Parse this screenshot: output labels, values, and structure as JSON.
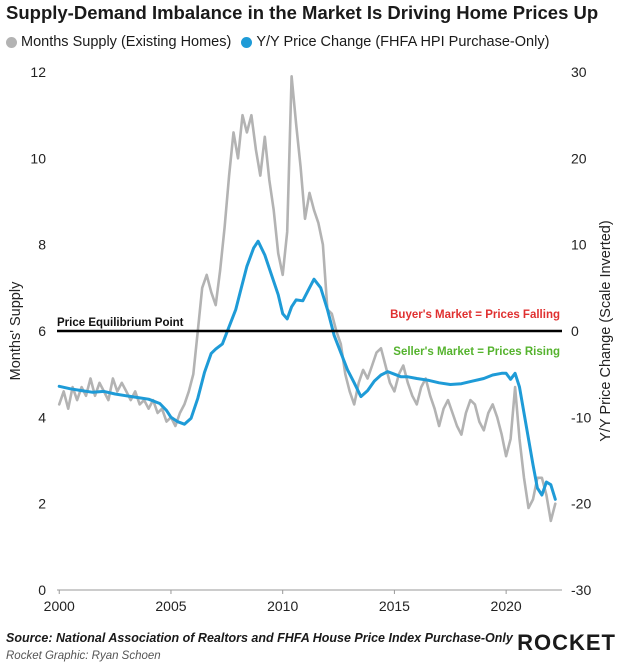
{
  "chart_data": {
    "type": "line",
    "title": "Supply-Demand Imbalance in the Market Is Driving Home Prices Up",
    "y_left_label": "Months' Supply",
    "y_right_label": "Y/Y Price Change (Scale Inverted)",
    "y_left_lim": [
      0,
      12
    ],
    "y_right_lim": [
      30,
      -30
    ],
    "y_right_inverted": true,
    "x_lim": [
      1999.9,
      2022.5
    ],
    "x_ticks": [
      "2000",
      "2005",
      "2010",
      "2015",
      "2020"
    ],
    "y_left_ticks": [
      "0",
      "2",
      "4",
      "6",
      "8",
      "10",
      "12"
    ],
    "y_right_ticks": [
      "30",
      "20",
      "10",
      "0",
      "-10",
      "-20",
      "-30"
    ],
    "grid": false,
    "legend_position": "top-left",
    "series": [
      {
        "name": "Months Supply (Existing Homes)",
        "axis": "left",
        "color": "#b3b3b3",
        "points": [
          [
            2000.0,
            4.3
          ],
          [
            2000.2,
            4.6
          ],
          [
            2000.4,
            4.2
          ],
          [
            2000.6,
            4.7
          ],
          [
            2000.8,
            4.4
          ],
          [
            2001.0,
            4.7
          ],
          [
            2001.2,
            4.5
          ],
          [
            2001.4,
            4.9
          ],
          [
            2001.6,
            4.5
          ],
          [
            2001.8,
            4.8
          ],
          [
            2002.0,
            4.6
          ],
          [
            2002.2,
            4.4
          ],
          [
            2002.4,
            4.9
          ],
          [
            2002.6,
            4.6
          ],
          [
            2002.8,
            4.8
          ],
          [
            2003.0,
            4.6
          ],
          [
            2003.2,
            4.4
          ],
          [
            2003.4,
            4.6
          ],
          [
            2003.6,
            4.3
          ],
          [
            2003.8,
            4.4
          ],
          [
            2004.0,
            4.2
          ],
          [
            2004.2,
            4.4
          ],
          [
            2004.4,
            4.1
          ],
          [
            2004.6,
            4.2
          ],
          [
            2004.8,
            3.9
          ],
          [
            2005.0,
            4.0
          ],
          [
            2005.2,
            3.8
          ],
          [
            2005.4,
            4.1
          ],
          [
            2005.6,
            4.3
          ],
          [
            2005.8,
            4.6
          ],
          [
            2006.0,
            5.0
          ],
          [
            2006.2,
            6.0
          ],
          [
            2006.4,
            7.0
          ],
          [
            2006.6,
            7.3
          ],
          [
            2006.8,
            6.9
          ],
          [
            2007.0,
            6.6
          ],
          [
            2007.2,
            7.4
          ],
          [
            2007.4,
            8.4
          ],
          [
            2007.6,
            9.6
          ],
          [
            2007.8,
            10.6
          ],
          [
            2008.0,
            10.0
          ],
          [
            2008.2,
            11.0
          ],
          [
            2008.4,
            10.6
          ],
          [
            2008.6,
            11.0
          ],
          [
            2008.8,
            10.2
          ],
          [
            2009.0,
            9.6
          ],
          [
            2009.2,
            10.5
          ],
          [
            2009.4,
            9.5
          ],
          [
            2009.6,
            8.8
          ],
          [
            2009.8,
            7.8
          ],
          [
            2010.0,
            7.3
          ],
          [
            2010.2,
            8.3
          ],
          [
            2010.4,
            11.9
          ],
          [
            2010.6,
            10.8
          ],
          [
            2010.8,
            9.8
          ],
          [
            2011.0,
            8.6
          ],
          [
            2011.2,
            9.2
          ],
          [
            2011.4,
            8.8
          ],
          [
            2011.6,
            8.5
          ],
          [
            2011.8,
            8.0
          ],
          [
            2012.0,
            6.5
          ],
          [
            2012.2,
            6.4
          ],
          [
            2012.4,
            6.0
          ],
          [
            2012.6,
            5.7
          ],
          [
            2012.8,
            5.0
          ],
          [
            2013.0,
            4.6
          ],
          [
            2013.2,
            4.3
          ],
          [
            2013.4,
            4.8
          ],
          [
            2013.6,
            5.1
          ],
          [
            2013.8,
            4.9
          ],
          [
            2014.0,
            5.2
          ],
          [
            2014.2,
            5.5
          ],
          [
            2014.4,
            5.6
          ],
          [
            2014.6,
            5.2
          ],
          [
            2014.8,
            4.8
          ],
          [
            2015.0,
            4.6
          ],
          [
            2015.2,
            5.0
          ],
          [
            2015.4,
            5.2
          ],
          [
            2015.6,
            4.8
          ],
          [
            2015.8,
            4.5
          ],
          [
            2016.0,
            4.3
          ],
          [
            2016.2,
            4.7
          ],
          [
            2016.4,
            4.9
          ],
          [
            2016.6,
            4.5
          ],
          [
            2016.8,
            4.2
          ],
          [
            2017.0,
            3.8
          ],
          [
            2017.2,
            4.2
          ],
          [
            2017.4,
            4.4
          ],
          [
            2017.6,
            4.1
          ],
          [
            2017.8,
            3.8
          ],
          [
            2018.0,
            3.6
          ],
          [
            2018.2,
            4.1
          ],
          [
            2018.4,
            4.4
          ],
          [
            2018.6,
            4.3
          ],
          [
            2018.8,
            3.9
          ],
          [
            2019.0,
            3.7
          ],
          [
            2019.2,
            4.1
          ],
          [
            2019.4,
            4.3
          ],
          [
            2019.6,
            4.0
          ],
          [
            2019.8,
            3.6
          ],
          [
            2020.0,
            3.1
          ],
          [
            2020.2,
            3.5
          ],
          [
            2020.4,
            4.7
          ],
          [
            2020.6,
            3.5
          ],
          [
            2020.8,
            2.6
          ],
          [
            2021.0,
            1.9
          ],
          [
            2021.2,
            2.1
          ],
          [
            2021.4,
            2.6
          ],
          [
            2021.6,
            2.6
          ],
          [
            2021.8,
            2.2
          ],
          [
            2022.0,
            1.6
          ],
          [
            2022.2,
            2.0
          ]
        ]
      },
      {
        "name": "Y/Y Price Change (FHFA HPI Purchase-Only)",
        "axis": "right",
        "color": "#1e9bd7",
        "points": [
          [
            2000.0,
            -6.4
          ],
          [
            2000.5,
            -6.7
          ],
          [
            2001.0,
            -6.9
          ],
          [
            2001.5,
            -7.1
          ],
          [
            2002.0,
            -7.0
          ],
          [
            2002.5,
            -7.3
          ],
          [
            2003.0,
            -7.5
          ],
          [
            2003.5,
            -7.7
          ],
          [
            2004.0,
            -7.9
          ],
          [
            2004.5,
            -8.4
          ],
          [
            2004.8,
            -9.2
          ],
          [
            2005.0,
            -10.0
          ],
          [
            2005.3,
            -10.5
          ],
          [
            2005.6,
            -10.8
          ],
          [
            2005.9,
            -10.1
          ],
          [
            2006.2,
            -7.8
          ],
          [
            2006.5,
            -4.8
          ],
          [
            2006.8,
            -2.6
          ],
          [
            2007.0,
            -2.1
          ],
          [
            2007.3,
            -1.5
          ],
          [
            2007.6,
            0.5
          ],
          [
            2007.9,
            2.5
          ],
          [
            2008.1,
            4.5
          ],
          [
            2008.4,
            7.5
          ],
          [
            2008.7,
            9.6
          ],
          [
            2008.9,
            10.4
          ],
          [
            2009.2,
            8.8
          ],
          [
            2009.5,
            6.5
          ],
          [
            2009.8,
            4.2
          ],
          [
            2010.0,
            2.0
          ],
          [
            2010.2,
            1.4
          ],
          [
            2010.4,
            2.8
          ],
          [
            2010.6,
            3.6
          ],
          [
            2010.9,
            3.5
          ],
          [
            2011.2,
            5.0
          ],
          [
            2011.4,
            6.0
          ],
          [
            2011.7,
            5.0
          ],
          [
            2012.0,
            2.5
          ],
          [
            2012.3,
            -0.5
          ],
          [
            2012.6,
            -2.5
          ],
          [
            2012.9,
            -4.5
          ],
          [
            2013.2,
            -6.0
          ],
          [
            2013.5,
            -7.6
          ],
          [
            2013.8,
            -6.9
          ],
          [
            2014.1,
            -5.8
          ],
          [
            2014.4,
            -5.1
          ],
          [
            2014.7,
            -4.7
          ],
          [
            2015.0,
            -5.0
          ],
          [
            2015.3,
            -5.3
          ],
          [
            2015.6,
            -5.3
          ],
          [
            2016.0,
            -5.5
          ],
          [
            2016.5,
            -5.7
          ],
          [
            2017.0,
            -6.0
          ],
          [
            2017.5,
            -6.2
          ],
          [
            2018.0,
            -6.1
          ],
          [
            2018.5,
            -5.8
          ],
          [
            2019.0,
            -5.5
          ],
          [
            2019.4,
            -5.1
          ],
          [
            2019.8,
            -4.9
          ],
          [
            2020.0,
            -4.9
          ],
          [
            2020.2,
            -5.6
          ],
          [
            2020.4,
            -4.9
          ],
          [
            2020.6,
            -6.5
          ],
          [
            2020.8,
            -9.5
          ],
          [
            2021.0,
            -12.5
          ],
          [
            2021.2,
            -15.5
          ],
          [
            2021.4,
            -18.2
          ],
          [
            2021.6,
            -19.0
          ],
          [
            2021.8,
            -17.5
          ],
          [
            2022.0,
            -17.8
          ],
          [
            2022.2,
            -19.5
          ]
        ]
      }
    ],
    "reference_line": {
      "axis": "left",
      "value": 6,
      "color": "#000000",
      "label": "Price Equilibrium Point"
    },
    "annotations": [
      {
        "text": "Buyer's Market = Prices Falling",
        "color": "#e03030"
      },
      {
        "text": "Seller's Market = Prices Rising",
        "color": "#55b32e"
      }
    ]
  },
  "footer": {
    "source": "Source: National Association of Realtors and FHFA House Price Index Purchase-Only",
    "credit": "Rocket Graphic: Ryan Schoen",
    "logo": "ROCKET"
  }
}
